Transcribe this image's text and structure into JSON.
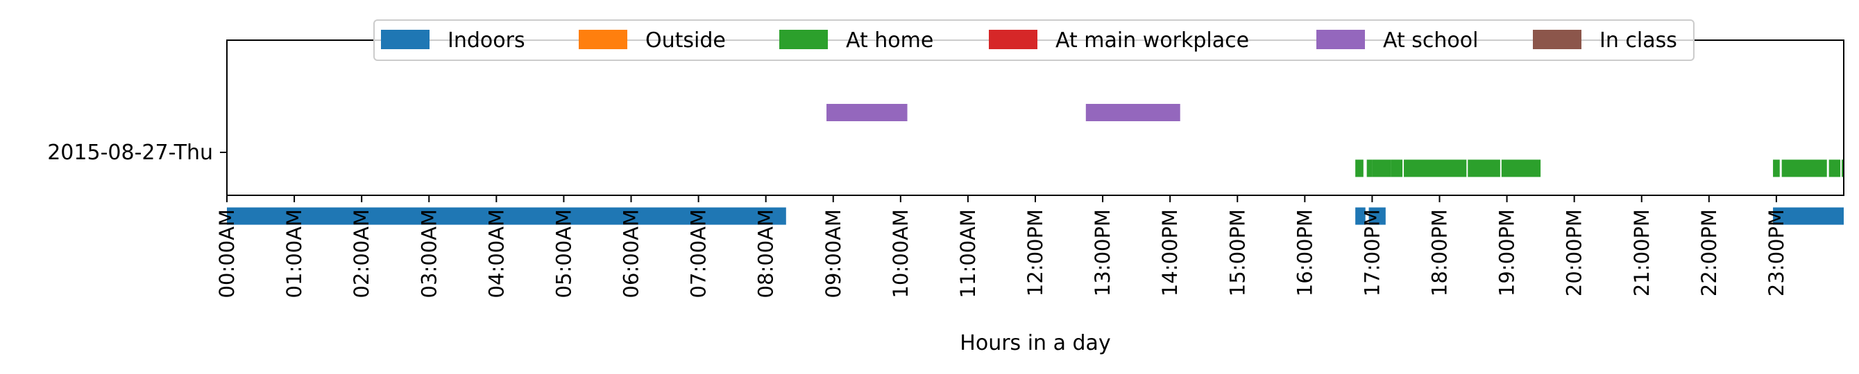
{
  "chart_data": {
    "type": "timeline",
    "title": "",
    "xlabel": "Hours in a day",
    "ylabel": "",
    "xlim": [
      0,
      24
    ],
    "x_unit": "hours",
    "y_categories": [
      "2015-08-27-Thu"
    ],
    "x_tick_labels": [
      "00:00AM",
      "01:00AM",
      "02:00AM",
      "03:00AM",
      "04:00AM",
      "05:00AM",
      "06:00AM",
      "07:00AM",
      "08:00AM",
      "09:00AM",
      "10:00AM",
      "11:00AM",
      "12:00PM",
      "13:00PM",
      "14:00PM",
      "15:00PM",
      "16:00PM",
      "17:00PM",
      "18:00PM",
      "19:00PM",
      "20:00PM",
      "21:00PM",
      "22:00PM",
      "23:00PM"
    ],
    "grid": false,
    "legend_position": "top-center",
    "legend": [
      {
        "name": "Indoors",
        "color": "#1f77b4"
      },
      {
        "name": "Outside",
        "color": "#ff7f0e"
      },
      {
        "name": "At home",
        "color": "#2ca02c"
      },
      {
        "name": "At main workplace",
        "color": "#d62728"
      },
      {
        "name": "At school",
        "color": "#9467bd"
      },
      {
        "name": "In class",
        "color": "#8c564b"
      }
    ],
    "series": [
      {
        "name": "Indoors",
        "color": "#1f77b4",
        "level": -0.4,
        "intervals": [
          [
            0.0,
            8.3
          ],
          [
            16.75,
            16.9
          ],
          [
            16.95,
            17.2
          ],
          [
            22.95,
            24.0
          ]
        ]
      },
      {
        "name": "Outside",
        "color": "#ff7f0e",
        "level": -0.2,
        "intervals": []
      },
      {
        "name": "At home",
        "color": "#2ca02c",
        "level": -0.1,
        "intervals": [
          [
            16.75,
            16.87
          ],
          [
            16.92,
            17.0
          ],
          [
            17.0,
            17.28
          ],
          [
            17.28,
            17.45
          ],
          [
            17.47,
            18.4
          ],
          [
            18.42,
            18.9
          ],
          [
            18.92,
            19.5
          ],
          [
            22.95,
            23.05
          ],
          [
            23.08,
            23.75
          ],
          [
            23.78,
            23.95
          ],
          [
            23.97,
            24.0
          ]
        ]
      },
      {
        "name": "At main workplace",
        "color": "#d62728",
        "level": 0.0,
        "intervals": []
      },
      {
        "name": "At school",
        "color": "#9467bd",
        "level": 0.25,
        "intervals": [
          [
            8.9,
            10.1
          ],
          [
            12.75,
            14.15
          ]
        ]
      },
      {
        "name": "In class",
        "color": "#8c564b",
        "level": 0.4,
        "intervals": []
      }
    ]
  }
}
